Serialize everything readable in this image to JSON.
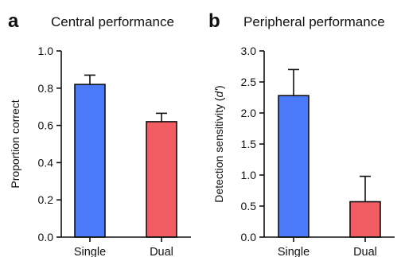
{
  "chart_data": [
    {
      "type": "bar",
      "panel_letter": "a",
      "title": "Central performance",
      "xlabel": "",
      "ylabel": "Proportion correct",
      "categories": [
        "Single",
        "Dual"
      ],
      "values": [
        0.82,
        0.62
      ],
      "error_upper": [
        0.05,
        0.045
      ],
      "ylim": [
        0,
        1.0
      ],
      "yticks": [
        "0.0",
        "0.2",
        "0.4",
        "0.6",
        "0.8",
        "1.0"
      ],
      "ytick_values": [
        0,
        0.2,
        0.4,
        0.6,
        0.8,
        1.0
      ],
      "colors": [
        "#4a7af7",
        "#f25c63"
      ],
      "grid": false
    },
    {
      "type": "bar",
      "panel_letter": "b",
      "title": "Peripheral performance",
      "xlabel": "",
      "ylabel": "Detection sensitivity (d')",
      "ylabel_main": "Detection sensitivity (",
      "ylabel_symbol": "d'",
      "ylabel_end": ")",
      "categories": [
        "Single",
        "Dual"
      ],
      "values": [
        2.28,
        0.57
      ],
      "error_upper": [
        0.42,
        0.41
      ],
      "ylim": [
        0,
        3.0
      ],
      "yticks": [
        "0.0",
        "0.5",
        "1.0",
        "1.5",
        "2.0",
        "2.5",
        "3.0"
      ],
      "ytick_values": [
        0,
        0.5,
        1.0,
        1.5,
        2.0,
        2.5,
        3.0
      ],
      "colors": [
        "#4a7af7",
        "#f25c63"
      ],
      "grid": false
    }
  ]
}
